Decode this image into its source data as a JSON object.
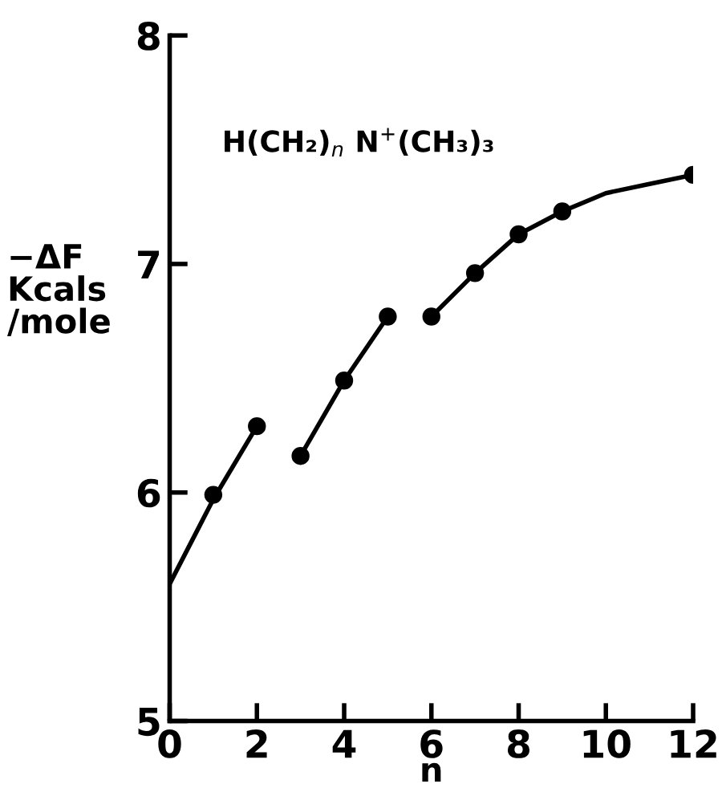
{
  "chart_data": {
    "type": "scatter",
    "xlabel": "n",
    "ylabel": "−ΔF\nKcals\n/mole",
    "annotations": [
      "H(CH₂)$_{n}$ N$^{+}$(CH₃)₃"
    ],
    "series": [
      {
        "type": "line",
        "color": "#000000",
        "marker": "none",
        "x": [
          0,
          1,
          2
        ],
        "values": [
          5.6,
          5.97,
          6.29
        ]
      },
      {
        "type": "line",
        "color": "#000000",
        "marker": "none",
        "x": [
          3,
          4,
          5
        ],
        "values": [
          6.16,
          6.49,
          6.77
        ]
      },
      {
        "type": "line",
        "color": "#000000",
        "marker": "none",
        "x": [
          6,
          7,
          8,
          9,
          10,
          11,
          12
        ],
        "values": [
          6.77,
          6.96,
          7.13,
          7.23,
          7.31,
          7.35,
          7.39
        ]
      },
      {
        "color": "#000000",
        "marker": "circle",
        "x": [
          1,
          2,
          3,
          4,
          5,
          6,
          7,
          8,
          9,
          12
        ],
        "values": [
          5.99,
          6.29,
          6.16,
          6.49,
          6.77,
          6.77,
          6.96,
          7.13,
          7.23,
          7.39
        ]
      }
    ],
    "xlim": [
      0,
      12
    ],
    "ylim": [
      5,
      8
    ],
    "xticks": [
      0,
      2,
      4,
      6,
      8,
      10,
      12
    ],
    "yticks": [
      5,
      6,
      7,
      8
    ],
    "grid": false,
    "legend": false
  }
}
